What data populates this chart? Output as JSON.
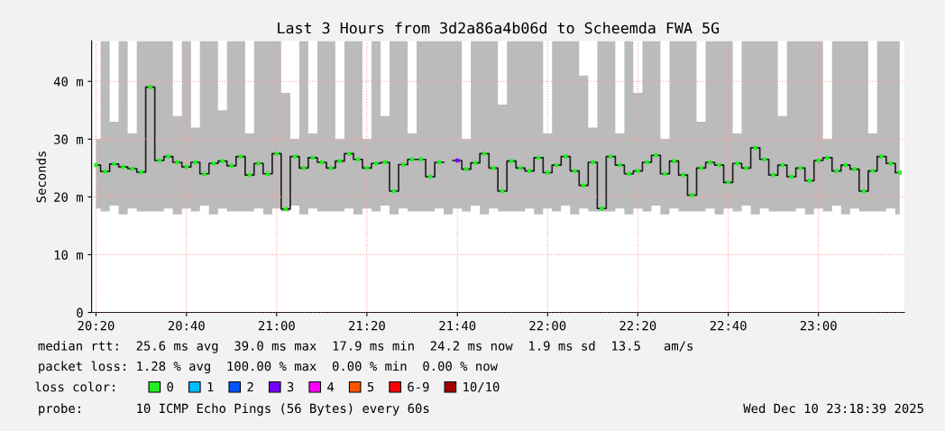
{
  "chart_data": {
    "type": "step",
    "title": "Last 3 Hours from 3d2a86a4b06d to Scheemda FWA 5G",
    "ylabel": "Seconds",
    "x": [
      20.333,
      20.367,
      20.4,
      20.433,
      20.467,
      20.5,
      20.533,
      20.567,
      20.6,
      20.633,
      20.667,
      20.7,
      20.733,
      20.767,
      20.8,
      20.833,
      20.867,
      20.9,
      20.933,
      20.967,
      21.0,
      21.033,
      21.067,
      21.1,
      21.133,
      21.167,
      21.2,
      21.233,
      21.267,
      21.3,
      21.333,
      21.367,
      21.4,
      21.433,
      21.467,
      21.5,
      21.533,
      21.567,
      21.6,
      21.633,
      21.667,
      21.7,
      21.733,
      21.767,
      21.8,
      21.833,
      21.867,
      21.9,
      21.933,
      21.967,
      22.0,
      22.033,
      22.067,
      22.1,
      22.133,
      22.167,
      22.2,
      22.233,
      22.267,
      22.3,
      22.333,
      22.367,
      22.4,
      22.433,
      22.467,
      22.5,
      22.533,
      22.567,
      22.6,
      22.633,
      22.667,
      22.7,
      22.733,
      22.767,
      22.8,
      22.833,
      22.867,
      22.9,
      22.933,
      22.967,
      23.0,
      23.033,
      23.067,
      23.1,
      23.133,
      23.167,
      23.2,
      23.233,
      23.267,
      23.3
    ],
    "series": [
      {
        "color": "#1e1e1e",
        "marker": "none",
        "values": [
          25.5,
          24.4,
          25.7,
          25.2,
          24.9,
          24.3,
          39.0,
          26.3,
          27.0,
          26.0,
          25.2,
          26.0,
          24.0,
          25.8,
          26.2,
          25.4,
          27.0,
          23.8,
          25.8,
          24.0,
          27.5,
          17.9,
          27.0,
          25.0,
          26.8,
          26.0,
          25.0,
          26.2,
          27.5,
          26.5,
          25.0,
          25.8,
          26.0,
          21.0,
          25.6,
          26.5,
          26.5,
          23.5,
          26.0,
          null,
          26.3,
          24.8,
          25.9,
          27.5,
          25.0,
          21.0,
          26.2,
          25.0,
          24.5,
          26.8,
          24.2,
          25.5,
          27.0,
          24.5,
          22.0,
          26.0,
          18.0,
          27.0,
          25.5,
          24.0,
          24.5,
          26.0,
          27.2,
          24.0,
          26.2,
          23.8,
          20.3,
          25.0,
          26.0,
          25.5,
          22.5,
          25.8,
          25.0,
          28.5,
          26.5,
          23.8,
          25.5,
          23.5,
          25.0,
          22.8,
          26.3,
          26.8,
          24.5,
          25.5,
          24.8,
          21.0,
          24.5,
          27.0,
          25.8,
          24.2
        ],
        "lower": [
          18,
          17.5,
          18.5,
          17,
          18,
          17.5,
          17.5,
          17.5,
          18,
          17,
          18,
          17.5,
          18.5,
          17,
          18,
          17.5,
          17.5,
          17.5,
          18,
          17,
          18,
          17.5,
          18.5,
          17,
          18,
          17.5,
          17.5,
          17.5,
          18,
          17,
          18,
          17.5,
          18.5,
          17,
          18,
          17.5,
          17.5,
          17.5,
          18,
          17,
          18,
          17.5,
          18.5,
          17,
          18,
          17.5,
          17.5,
          17.5,
          18,
          17,
          18,
          17.5,
          18.5,
          17,
          18,
          17.5,
          17.5,
          17.5,
          18,
          17,
          18,
          17.5,
          18.5,
          17,
          18,
          17.5,
          17.5,
          17.5,
          18,
          17,
          18,
          17.5,
          18.5,
          17,
          18,
          17.5,
          17.5,
          17.5,
          18,
          17,
          18,
          17.5,
          18.5,
          17,
          18,
          17.5,
          17.5,
          17.5,
          18,
          17
        ],
        "upper": [
          30,
          47,
          33,
          47,
          31,
          47,
          47,
          47,
          47,
          34,
          47,
          32,
          47,
          47,
          35,
          47,
          47,
          31,
          47,
          47,
          47,
          38,
          30,
          47,
          31,
          47,
          47,
          30,
          47,
          47,
          30,
          47,
          34,
          47,
          47,
          31,
          47,
          47,
          47,
          47,
          47,
          30,
          47,
          47,
          47,
          36,
          47,
          47,
          47,
          47,
          31,
          47,
          47,
          47,
          41,
          32,
          47,
          47,
          31,
          47,
          38,
          47,
          47,
          30,
          47,
          47,
          47,
          33,
          47,
          47,
          47,
          31,
          47,
          47,
          47,
          47,
          34,
          47,
          47,
          47,
          47,
          30,
          47,
          47,
          47,
          47,
          31,
          47,
          47,
          47
        ]
      },
      {
        "type": "scatter",
        "name": "0",
        "color": "#22ee22",
        "values": [
          25.5,
          24.4,
          25.7,
          25.2,
          24.9,
          24.3,
          39.0,
          26.3,
          27.0,
          26.0,
          25.2,
          26.0,
          24.0,
          25.8,
          26.2,
          25.4,
          27.0,
          23.8,
          25.8,
          24.0,
          27.5,
          17.9,
          27.0,
          25.0,
          26.8,
          26.0,
          25.0,
          26.2,
          27.5,
          26.5,
          25.0,
          25.8,
          26.0,
          21.0,
          25.6,
          26.5,
          26.5,
          23.5,
          26.0,
          null,
          null,
          24.8,
          25.9,
          27.5,
          25.0,
          21.0,
          26.2,
          25.0,
          24.5,
          26.8,
          24.2,
          25.5,
          27.0,
          24.5,
          22.0,
          26.0,
          18.0,
          27.0,
          25.5,
          24.0,
          24.5,
          26.0,
          27.2,
          24.0,
          26.2,
          23.8,
          20.3,
          25.0,
          26.0,
          25.5,
          22.5,
          25.8,
          25.0,
          28.5,
          26.5,
          23.8,
          25.5,
          23.5,
          25.0,
          22.8,
          26.3,
          26.8,
          24.5,
          25.5,
          24.8,
          21.0,
          24.5,
          27.0,
          25.8,
          24.2
        ]
      },
      {
        "type": "scatter",
        "name": "1",
        "color": "#00bbff",
        "values": [
          null,
          null,
          null,
          null,
          null,
          null,
          null,
          null,
          null,
          null,
          null,
          null,
          null,
          null,
          null,
          null,
          null,
          null,
          null,
          null,
          null,
          null,
          null,
          null,
          null,
          null,
          null,
          null,
          null,
          null,
          null,
          null,
          null,
          null,
          null,
          null,
          null,
          null,
          null,
          null,
          null,
          null,
          null,
          null,
          null,
          null,
          null,
          null,
          null,
          null,
          null,
          null,
          null,
          null,
          null,
          null,
          null,
          null,
          null,
          null,
          null,
          null,
          null,
          null,
          null,
          null,
          null,
          null,
          null,
          null,
          null,
          null,
          null,
          null,
          null,
          null,
          null,
          null,
          null,
          null,
          null,
          null,
          null,
          null,
          null,
          null,
          null,
          null,
          null,
          null
        ]
      },
      {
        "type": "scatter",
        "name": "2",
        "color": "#0055ff",
        "values": [
          null,
          null,
          null,
          null,
          null,
          null,
          null,
          null,
          null,
          null,
          null,
          null,
          null,
          null,
          null,
          null,
          null,
          null,
          null,
          null,
          null,
          null,
          null,
          null,
          null,
          null,
          null,
          null,
          null,
          null,
          null,
          null,
          null,
          null,
          null,
          null,
          null,
          null,
          null,
          null,
          null,
          null,
          null,
          null,
          null,
          null,
          null,
          null,
          null,
          null,
          null,
          null,
          null,
          null,
          null,
          null,
          null,
          null,
          null,
          null,
          null,
          null,
          null,
          null,
          null,
          null,
          null,
          null,
          null,
          null,
          null,
          null,
          null,
          null,
          null,
          null,
          null,
          null,
          null,
          null,
          null,
          null,
          null,
          null,
          null,
          null,
          null,
          null,
          null,
          null
        ]
      },
      {
        "type": "scatter",
        "name": "3",
        "color": "#7700ff",
        "x": [
          21.667
        ],
        "values": [
          26.3
        ]
      },
      {
        "type": "scatter",
        "name": "4",
        "color": "#ff00ff",
        "values": [
          null,
          null,
          null,
          null,
          null,
          null,
          null,
          null,
          null,
          null,
          null,
          null,
          null,
          null,
          null,
          null,
          null,
          null,
          null,
          null,
          null,
          null,
          null,
          null,
          null,
          null,
          null,
          null,
          null,
          null,
          null,
          null,
          null,
          null,
          null,
          null,
          null,
          null,
          null,
          null,
          null,
          null,
          null,
          null,
          null,
          null,
          null,
          null,
          null,
          null,
          null,
          null,
          null,
          null,
          null,
          null,
          null,
          null,
          null,
          null,
          null,
          null,
          null,
          null,
          null,
          null,
          null,
          null,
          null,
          null,
          null,
          null,
          null,
          null,
          null,
          null,
          null,
          null,
          null,
          null,
          null,
          null,
          null,
          null,
          null,
          null,
          null,
          null,
          null,
          null
        ]
      },
      {
        "type": "scatter",
        "name": "5",
        "color": "#ff5500",
        "values": [
          null,
          null,
          null,
          null,
          null,
          null,
          null,
          null,
          null,
          null,
          null,
          null,
          null,
          null,
          null,
          null,
          null,
          null,
          null,
          null,
          null,
          null,
          null,
          null,
          null,
          null,
          null,
          null,
          null,
          null,
          null,
          null,
          null,
          null,
          null,
          null,
          null,
          null,
          null,
          null,
          null,
          null,
          null,
          null,
          null,
          null,
          null,
          null,
          null,
          null,
          null,
          null,
          null,
          null,
          null,
          null,
          null,
          null,
          null,
          null,
          null,
          null,
          null,
          null,
          null,
          null,
          null,
          null,
          null,
          null,
          null,
          null,
          null,
          null,
          null,
          null,
          null,
          null,
          null,
          null,
          null,
          null,
          null,
          null,
          null,
          null,
          null,
          null,
          null,
          null
        ]
      },
      {
        "type": "scatter",
        "name": "6-9",
        "color": "#ff0000",
        "values": [
          null,
          null,
          null,
          null,
          null,
          null,
          null,
          null,
          null,
          null,
          null,
          null,
          null,
          null,
          null,
          null,
          null,
          null,
          null,
          null,
          null,
          null,
          null,
          null,
          null,
          null,
          null,
          null,
          null,
          null,
          null,
          null,
          null,
          null,
          null,
          null,
          null,
          null,
          null,
          null,
          null,
          null,
          null,
          null,
          null,
          null,
          null,
          null,
          null,
          null,
          null,
          null,
          null,
          null,
          null,
          null,
          null,
          null,
          null,
          null,
          null,
          null,
          null,
          null,
          null,
          null,
          null,
          null,
          null,
          null,
          null,
          null,
          null,
          null,
          null,
          null,
          null,
          null,
          null,
          null,
          null,
          null,
          null,
          null,
          null,
          null,
          null,
          null,
          null,
          null
        ]
      },
      {
        "type": "scatter",
        "name": "10/10",
        "color": "#a10000",
        "values": [
          null,
          null,
          null,
          null,
          null,
          null,
          null,
          null,
          null,
          null,
          null,
          null,
          null,
          null,
          null,
          null,
          null,
          null,
          null,
          null,
          null,
          null,
          null,
          null,
          null,
          null,
          null,
          null,
          null,
          null,
          null,
          null,
          null,
          null,
          null,
          null,
          null,
          null,
          null,
          null,
          null,
          null,
          null,
          null,
          null,
          null,
          null,
          null,
          null,
          null,
          null,
          null,
          null,
          null,
          null,
          null,
          null,
          null,
          null,
          null,
          null,
          null,
          null,
          null,
          null,
          null,
          null,
          null,
          null,
          null,
          null,
          null,
          null,
          null,
          null,
          null,
          null,
          null,
          null,
          null,
          null,
          null,
          null,
          null,
          null,
          null,
          null,
          null,
          null,
          null
        ]
      }
    ],
    "legend_title": "loss color:",
    "legend": "bottom",
    "marker": "square",
    "grid": true,
    "xlim": [
      20.317,
      23.317
    ],
    "xticks": [
      {
        "value": 20.333,
        "label": "20:20"
      },
      {
        "value": 20.667,
        "label": "20:40"
      },
      {
        "value": 21.0,
        "label": "21:00"
      },
      {
        "value": 21.333,
        "label": "21:20"
      },
      {
        "value": 21.667,
        "label": "21:40"
      },
      {
        "value": 22.0,
        "label": "22:00"
      },
      {
        "value": 22.333,
        "label": "22:20"
      },
      {
        "value": 22.667,
        "label": "22:40"
      },
      {
        "value": 23.0,
        "label": "23:00"
      }
    ],
    "ylim": [
      0,
      47
    ],
    "yticks": [
      0,
      {
        "value": 10,
        "label": "10 m"
      },
      {
        "value": 20,
        "label": "20 m"
      },
      {
        "value": 30,
        "label": "30 m"
      },
      {
        "value": 40,
        "label": "40 m"
      }
    ],
    "annotations": [
      "median rtt:  25.6 ms avg  39.0 ms max  17.9 ms min  24.2 ms now  1.9 ms sd  13.5   am/s",
      "packet loss: 1.28 % avg  100.00 % max  0.00 % min  0.00 % now",
      "probe:       10 ICMP Echo Pings (56 Bytes) every 60s",
      "Wed Dec 10 23:18:39 2025"
    ]
  }
}
